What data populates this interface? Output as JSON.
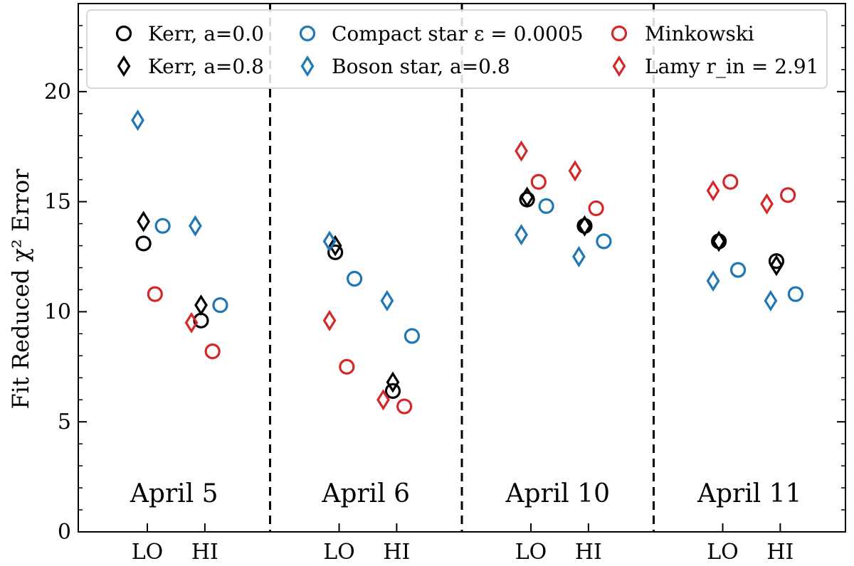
{
  "chart_data": {
    "type": "scatter",
    "ylabel": "Fit Reduced χ² Error",
    "ylim": [
      0,
      24
    ],
    "yticks": [
      0,
      5,
      10,
      15,
      20
    ],
    "grid": false,
    "legend_position": "top",
    "panels": [
      {
        "label": "April 5",
        "xticks": [
          "LO",
          "HI"
        ]
      },
      {
        "label": "April 6",
        "xticks": [
          "LO",
          "HI"
        ]
      },
      {
        "label": "April 10",
        "xticks": [
          "LO",
          "HI"
        ]
      },
      {
        "label": "April 11",
        "xticks": [
          "LO",
          "HI"
        ]
      }
    ],
    "series": [
      {
        "name": "Kerr, a=0.0",
        "marker": "circle",
        "color": "#000000",
        "values": [
          [
            13.1,
            9.6
          ],
          [
            12.7,
            6.4
          ],
          [
            15.1,
            13.9
          ],
          [
            13.2,
            12.3
          ]
        ]
      },
      {
        "name": "Kerr, a=0.8",
        "marker": "diamond",
        "color": "#000000",
        "values": [
          [
            14.1,
            10.3
          ],
          [
            13.0,
            6.8
          ],
          [
            15.2,
            13.9
          ],
          [
            13.2,
            12.1
          ]
        ]
      },
      {
        "name": "Compact star ε = 0.0005",
        "marker": "circle",
        "color": "#1f77b4",
        "values": [
          [
            13.9,
            10.3
          ],
          [
            11.5,
            8.9
          ],
          [
            14.8,
            13.2
          ],
          [
            11.9,
            10.8
          ]
        ]
      },
      {
        "name": "Boson star, a=0.8",
        "marker": "diamond",
        "color": "#1f77b4",
        "values": [
          [
            18.7,
            13.9
          ],
          [
            13.2,
            10.5
          ],
          [
            13.5,
            12.5
          ],
          [
            11.4,
            10.5
          ]
        ]
      },
      {
        "name": "Minkowski",
        "marker": "circle",
        "color": "#d62728",
        "values": [
          [
            10.8,
            8.2
          ],
          [
            7.5,
            5.7
          ],
          [
            15.9,
            14.7
          ],
          [
            15.9,
            15.3
          ]
        ]
      },
      {
        "name": "Lamy r_in = 2.91",
        "marker": "diamond",
        "color": "#d62728",
        "values": [
          [
            null,
            9.5
          ],
          [
            9.6,
            6.0
          ],
          [
            17.3,
            16.4
          ],
          [
            15.5,
            14.9
          ]
        ]
      }
    ]
  }
}
